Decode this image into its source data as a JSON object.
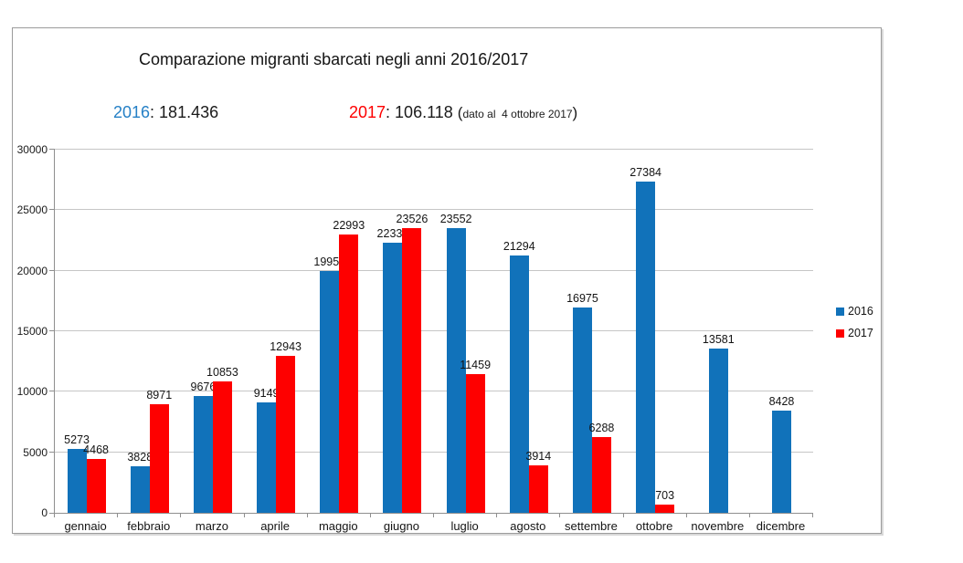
{
  "title": "Comparazione migranti sbarcati negli anni 2016/2017",
  "summary": {
    "y2016_label": "2016",
    "y2016_value": ": 181.436",
    "y2017_label": "2017",
    "y2017_value": ": 106.118 ",
    "note_open": "(",
    "note": "dato al  4 ottobre 2017",
    "note_close": ")"
  },
  "colors": {
    "bar_2016": "#1172ba",
    "bar_2017": "#fe0000",
    "label_2016_text": "#2580c6",
    "label_2017_text": "#fe0000",
    "gridline": "#c6c6c6",
    "axis": "#8f8f8f",
    "frame_border": "#9b9b9b"
  },
  "legend": [
    {
      "label": "2016",
      "color": "#1172ba"
    },
    {
      "label": "2017",
      "color": "#fe0000"
    }
  ],
  "chart_data": {
    "type": "bar",
    "title": "Comparazione migranti sbarcati negli anni 2016/2017",
    "xlabel": "",
    "ylabel": "",
    "categories": [
      "gennaio",
      "febbraio",
      "marzo",
      "aprile",
      "maggio",
      "giugno",
      "luglio",
      "agosto",
      "settembre",
      "ottobre",
      "novembre",
      "dicembre"
    ],
    "series": [
      {
        "name": "2016",
        "color": "#1172ba",
        "values": [
          5273,
          3828,
          9676,
          9149,
          19957,
          22339,
          23552,
          21294,
          16975,
          27384,
          13581,
          8428
        ]
      },
      {
        "name": "2017",
        "color": "#fe0000",
        "values": [
          4468,
          8971,
          10853,
          12943,
          22993,
          23526,
          11459,
          3914,
          6288,
          703,
          null,
          null
        ]
      }
    ],
    "totals": {
      "2016": "181.436",
      "2017": "106.118"
    },
    "ylim": [
      0,
      30000
    ],
    "yticks": [
      0,
      5000,
      10000,
      15000,
      20000,
      25000,
      30000
    ],
    "grid": true,
    "data_labels": true,
    "legend_position": "right"
  }
}
